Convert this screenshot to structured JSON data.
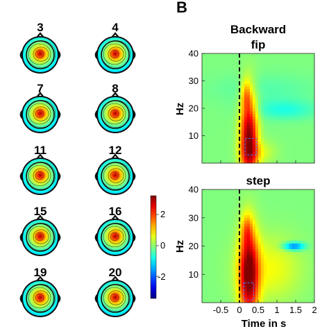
{
  "panel_label": "B",
  "topomaps": {
    "labels": [
      "3",
      "4",
      "7",
      "8",
      "11",
      "12",
      "15",
      "16",
      "19",
      "20"
    ],
    "colorbar": {
      "ticks": [
        "2",
        "0",
        "-2"
      ],
      "range": [
        -3,
        3
      ]
    }
  },
  "spectrograms": {
    "header": "Backward",
    "ylabel": "Hz",
    "xlabel": "Time in s",
    "x_ticks": [
      "-0.5",
      "0",
      "0.5",
      "1",
      "1.5",
      "2"
    ],
    "y_ticks": [
      "40",
      "30",
      "20",
      "10"
    ],
    "panels": [
      {
        "title": "fip"
      },
      {
        "title": "step"
      }
    ]
  },
  "chart_data": [
    {
      "type": "heatmap",
      "title": "fip",
      "xlabel": "",
      "ylabel": "Hz",
      "xlim": [
        -1,
        2
      ],
      "ylim": [
        0,
        40
      ],
      "x_ticks": [
        -0.5,
        0,
        0.5,
        1,
        1.5,
        2
      ],
      "y_ticks": [
        10,
        20,
        30,
        40
      ],
      "vline_x": 0,
      "box": {
        "x": [
          0.15,
          0.45
        ],
        "y": [
          3,
          9
        ]
      },
      "blobs": [
        {
          "x": 0.25,
          "y": 9,
          "sx": 0.16,
          "sy": 11,
          "amp": 3.0
        },
        {
          "x": 0.18,
          "y": 25,
          "sx": 0.09,
          "sy": 4,
          "amp": 0.9
        },
        {
          "x": 1.2,
          "y": 19.5,
          "sx": 0.6,
          "sy": 2.5,
          "amp": -0.55
        },
        {
          "x": 0.7,
          "y": 27,
          "sx": 1.0,
          "sy": 4,
          "amp": -0.25
        },
        {
          "x": 0.5,
          "y": 4,
          "sx": 0.3,
          "sy": 3,
          "amp": 0.6
        }
      ]
    },
    {
      "type": "heatmap",
      "title": "step",
      "xlabel": "Time in s",
      "ylabel": "Hz",
      "xlim": [
        -1,
        2
      ],
      "ylim": [
        0,
        40
      ],
      "x_ticks": [
        -0.5,
        0,
        0.5,
        1,
        1.5,
        2
      ],
      "y_ticks": [
        10,
        20,
        30,
        40
      ],
      "vline_x": 0,
      "box": {
        "x": [
          0.12,
          0.38
        ],
        "y": [
          1,
          7
        ]
      },
      "blobs": [
        {
          "x": 0.25,
          "y": 10,
          "sx": 0.18,
          "sy": 11,
          "amp": 3.0
        },
        {
          "x": 0.2,
          "y": 26,
          "sx": 0.1,
          "sy": 4,
          "amp": 0.9
        },
        {
          "x": 1.45,
          "y": 20,
          "sx": 0.2,
          "sy": 1,
          "amp": -1.7
        },
        {
          "x": 0.8,
          "y": 12,
          "sx": 0.6,
          "sy": 8,
          "amp": 0.7
        }
      ]
    }
  ]
}
